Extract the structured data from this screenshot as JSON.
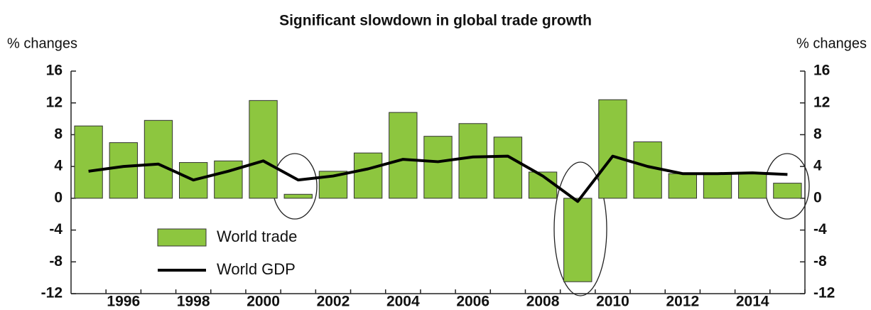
{
  "chart_data": {
    "type": "bar",
    "title": "Significant slowdown in global trade growth",
    "y_label": "% changes",
    "y2_label": "% changes",
    "categories": [
      null,
      "1996",
      null,
      "1998",
      null,
      "2000",
      null,
      "2002",
      null,
      "2004",
      null,
      "2006",
      null,
      "2008",
      null,
      "2010",
      null,
      "2012",
      null,
      "2014",
      null
    ],
    "series": [
      {
        "name": "World trade",
        "type": "bar",
        "color": "#8dc63f",
        "values": [
          9.1,
          7.0,
          9.8,
          4.5,
          4.7,
          12.3,
          0.5,
          3.4,
          5.7,
          10.8,
          7.8,
          9.4,
          7.7,
          3.3,
          -10.5,
          12.4,
          7.1,
          3.1,
          3.1,
          3.2,
          1.9
        ]
      },
      {
        "name": "World GDP",
        "type": "line",
        "color": "#000000",
        "values": [
          3.4,
          4.0,
          4.3,
          2.3,
          3.4,
          4.7,
          2.3,
          2.8,
          3.7,
          4.9,
          4.6,
          5.2,
          5.3,
          2.8,
          -0.4,
          5.3,
          4.0,
          3.1,
          3.1,
          3.2,
          3.0
        ]
      }
    ],
    "ylim": [
      -12,
      16
    ],
    "yticks": [
      -12,
      -8,
      -4,
      0,
      4,
      8,
      12,
      16
    ],
    "y2lim": [
      -12,
      16
    ],
    "y2ticks": [
      -12,
      -8,
      -4,
      0,
      4,
      8,
      12,
      16
    ],
    "legend": "lower left"
  }
}
